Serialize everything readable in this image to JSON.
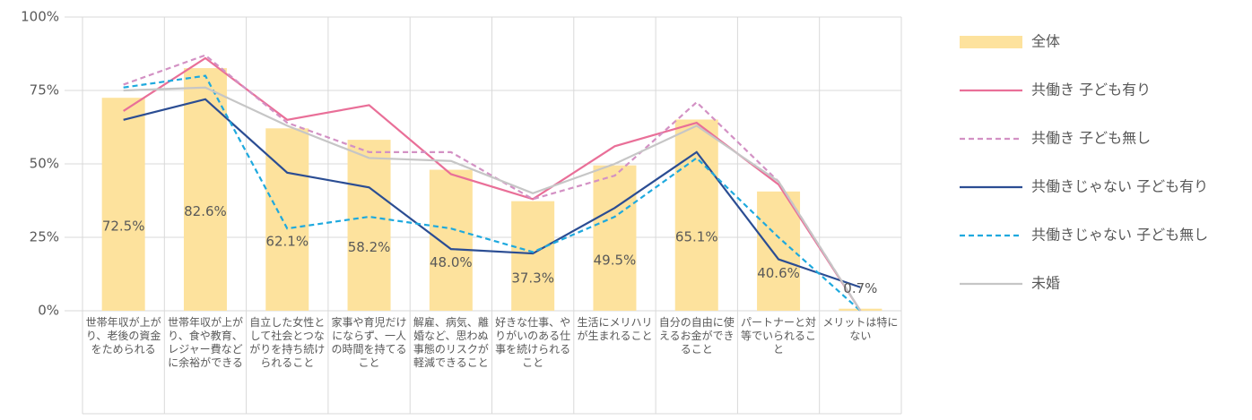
{
  "chart_data": {
    "type": "bar",
    "categories": [
      "世帯年収が上がり、老後の資金をためられる",
      "世帯年収が上がり、食や教育、レジャー費などに余裕ができる",
      "自立した女性として社会とつながりを持ち続けられること",
      "家事や育児だけにならず、一人の時間を持てること",
      "解雇、病気、離婚など、思わぬ事態のリスクが軽減できること",
      "好きな仕事、やりがいのある仕事を続けられること",
      "生活にメリハリが生まれること",
      "自分の自由に使えるお金ができること",
      "パートナーと対等でいられること",
      "メリットは特にない"
    ],
    "series": [
      {
        "name": "全体",
        "type": "bar",
        "color": "#fde29d",
        "values": [
          72.5,
          82.6,
          62.1,
          58.2,
          48.0,
          37.3,
          49.5,
          65.1,
          40.6,
          0.7
        ],
        "value_labels": [
          "72.5%",
          "82.6%",
          "62.1%",
          "58.2%",
          "48.0%",
          "37.3%",
          "49.5%",
          "65.1%",
          "40.6%",
          "0.7%"
        ]
      },
      {
        "name": "共働き 子ども有り",
        "type": "line",
        "dashed": false,
        "color": "#e96f98",
        "values": [
          68,
          86,
          65,
          70,
          46.5,
          38,
          56,
          64,
          43,
          0
        ]
      },
      {
        "name": "共働き 子ども無し",
        "type": "line",
        "dashed": true,
        "color": "#d391c4",
        "values": [
          77,
          87,
          64,
          54,
          54,
          38,
          46,
          71,
          44,
          0
        ]
      },
      {
        "name": "共働きじゃない 子ども有り",
        "type": "line",
        "dashed": false,
        "color": "#2b4d93",
        "values": [
          65,
          72,
          47,
          42,
          21,
          19.5,
          35,
          54,
          17.5,
          8
        ]
      },
      {
        "name": "共働きじゃない 子ども無し",
        "type": "line",
        "dashed": true,
        "color": "#1ea9de",
        "values": [
          76,
          80,
          28,
          32,
          28,
          20,
          32,
          52,
          25,
          0
        ]
      },
      {
        "name": "未婚",
        "type": "line",
        "dashed": false,
        "color": "#c6c6c6",
        "values": [
          75,
          76,
          63,
          52,
          51,
          40,
          50,
          63,
          44,
          0
        ]
      }
    ],
    "ylim": [
      0,
      100
    ],
    "yticks": [
      {
        "value": 0,
        "label": "0%"
      },
      {
        "value": 25,
        "label": "25%"
      },
      {
        "value": 50,
        "label": "50%"
      },
      {
        "value": 75,
        "label": "75%"
      },
      {
        "value": 100,
        "label": "100%"
      }
    ],
    "grid": true,
    "legend": "right"
  }
}
